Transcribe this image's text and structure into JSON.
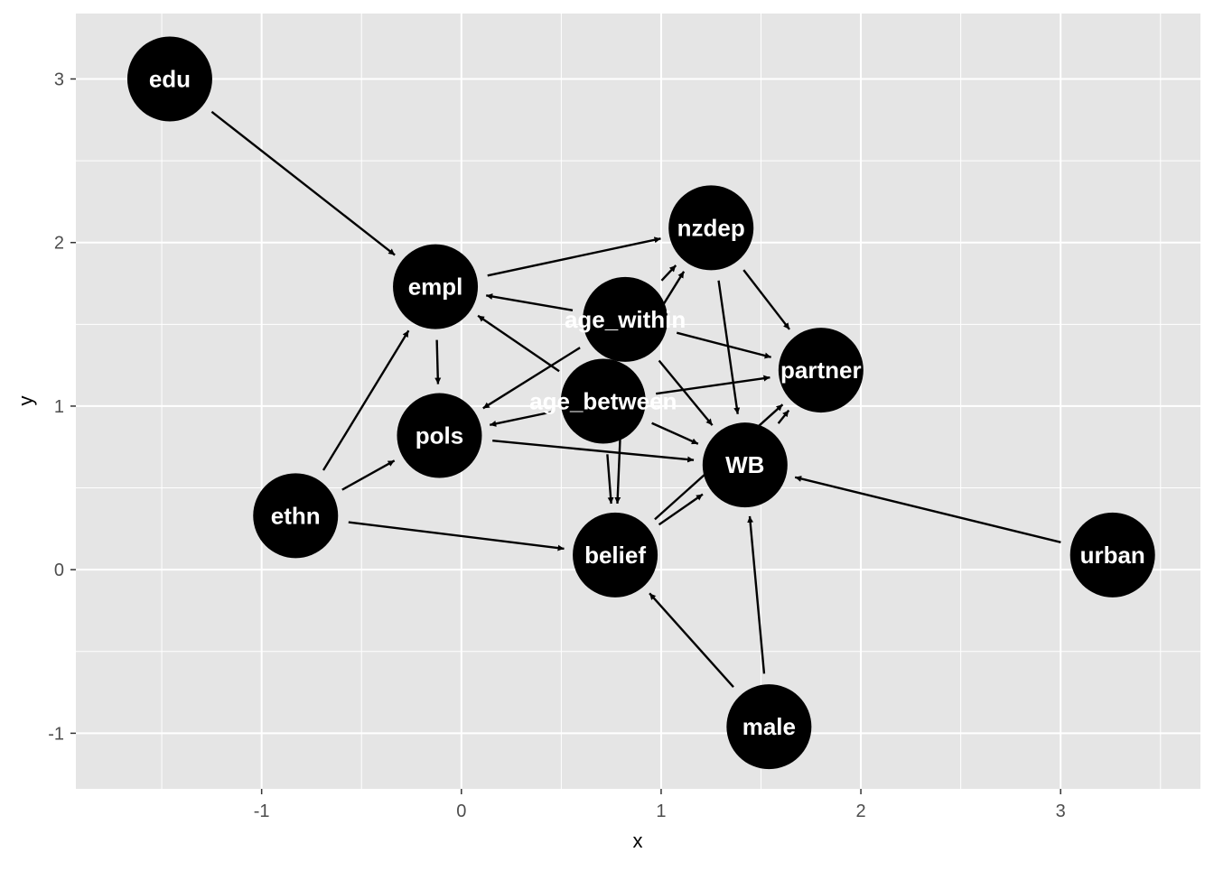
{
  "chart_data": {
    "type": "network-graph",
    "xlabel": "x",
    "ylabel": "y",
    "xlim": [
      -1.93,
      3.7
    ],
    "ylim": [
      -1.34,
      3.4
    ],
    "x_ticks": [
      -1,
      0,
      1,
      2,
      3
    ],
    "x_tick_labels": [
      "-1",
      "0",
      "1",
      "2",
      "3"
    ],
    "y_ticks": [
      -1,
      0,
      1,
      2,
      3
    ],
    "y_tick_labels": [
      "-1",
      "0",
      "1",
      "2",
      "3"
    ],
    "grid": true,
    "panel_color": "#e5e5e5",
    "node_color": "#000000",
    "edge_color": "#000000",
    "label_color": "#ffffff",
    "nodes": [
      {
        "id": "edu",
        "x": -1.46,
        "y": 3.0
      },
      {
        "id": "empl",
        "x": -0.13,
        "y": 1.73
      },
      {
        "id": "nzdep",
        "x": 1.25,
        "y": 2.09
      },
      {
        "id": "age_within",
        "x": 0.82,
        "y": 1.53
      },
      {
        "id": "partner",
        "x": 1.8,
        "y": 1.22
      },
      {
        "id": "age_between",
        "x": 0.71,
        "y": 1.03
      },
      {
        "id": "pols",
        "x": -0.11,
        "y": 0.82
      },
      {
        "id": "WB",
        "x": 1.42,
        "y": 0.64
      },
      {
        "id": "ethn",
        "x": -0.83,
        "y": 0.33
      },
      {
        "id": "belief",
        "x": 0.77,
        "y": 0.09
      },
      {
        "id": "urban",
        "x": 3.26,
        "y": 0.09
      },
      {
        "id": "male",
        "x": 1.54,
        "y": -0.96
      }
    ],
    "edges": [
      {
        "from": "edu",
        "to": "empl"
      },
      {
        "from": "empl",
        "to": "nzdep"
      },
      {
        "from": "empl",
        "to": "pols"
      },
      {
        "from": "age_within",
        "to": "empl"
      },
      {
        "from": "age_within",
        "to": "nzdep"
      },
      {
        "from": "age_within",
        "to": "partner"
      },
      {
        "from": "age_within",
        "to": "pols"
      },
      {
        "from": "age_within",
        "to": "WB"
      },
      {
        "from": "age_within",
        "to": "belief"
      },
      {
        "from": "age_between",
        "to": "empl"
      },
      {
        "from": "age_between",
        "to": "nzdep"
      },
      {
        "from": "age_between",
        "to": "partner"
      },
      {
        "from": "age_between",
        "to": "pols"
      },
      {
        "from": "age_between",
        "to": "WB"
      },
      {
        "from": "age_between",
        "to": "belief"
      },
      {
        "from": "nzdep",
        "to": "partner"
      },
      {
        "from": "nzdep",
        "to": "WB"
      },
      {
        "from": "pols",
        "to": "WB"
      },
      {
        "from": "ethn",
        "to": "empl"
      },
      {
        "from": "ethn",
        "to": "pols"
      },
      {
        "from": "ethn",
        "to": "belief"
      },
      {
        "from": "belief",
        "to": "WB"
      },
      {
        "from": "belief",
        "to": "partner"
      },
      {
        "from": "WB",
        "to": "partner"
      },
      {
        "from": "urban",
        "to": "WB"
      },
      {
        "from": "male",
        "to": "WB"
      },
      {
        "from": "male",
        "to": "belief"
      }
    ]
  }
}
